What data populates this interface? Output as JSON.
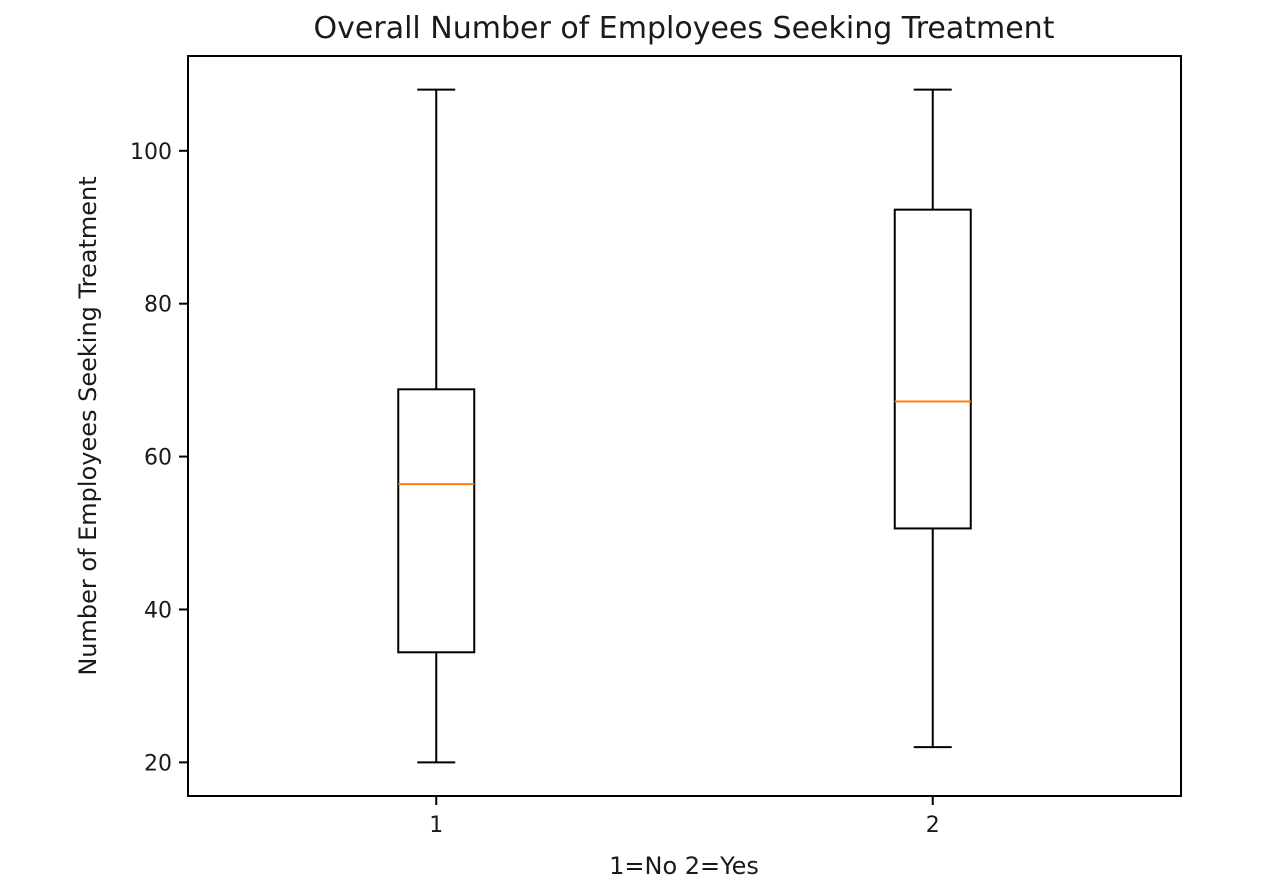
{
  "chart_data": {
    "type": "box",
    "title": "Overall Number of Employees Seeking Treatment",
    "xlabel": "1=No 2=Yes",
    "ylabel": "Number of Employees Seeking Treatment",
    "ylim": [
      15.6,
      112.4
    ],
    "yticks": [
      20,
      40,
      60,
      80,
      100
    ],
    "categories": [
      "1",
      "2"
    ],
    "boxes": [
      {
        "whisker_low": 20,
        "q1": 34.4,
        "median": 56.4,
        "q3": 68.8,
        "whisker_high": 108
      },
      {
        "whisker_low": 22,
        "q1": 50.6,
        "median": 67.2,
        "q3": 92.3,
        "whisker_high": 108
      }
    ],
    "grid": false,
    "colors": {
      "box": "#000000",
      "median": "#ff7f0e",
      "text": "#1a1a1a"
    }
  }
}
